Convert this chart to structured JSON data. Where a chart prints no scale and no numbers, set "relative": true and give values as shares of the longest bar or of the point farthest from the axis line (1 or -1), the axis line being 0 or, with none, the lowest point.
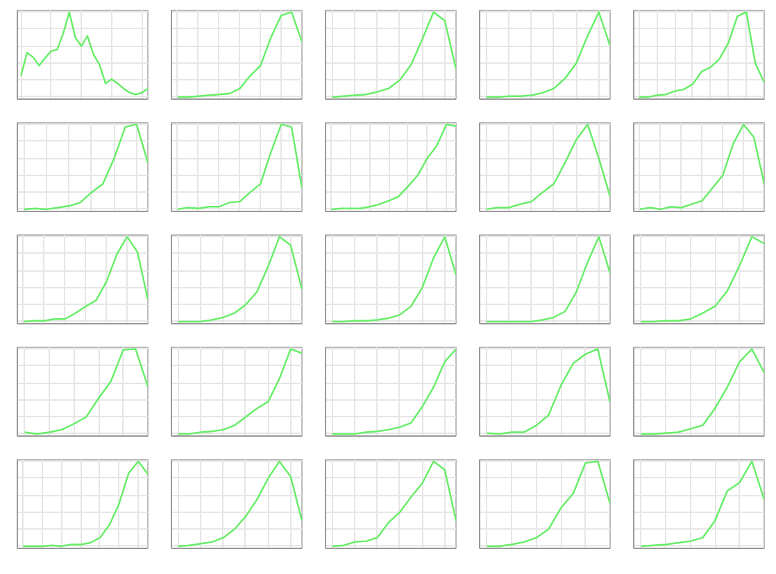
{
  "chart_data": [
    {
      "type": "line",
      "relative": true,
      "grid": true,
      "color": "#66ee66",
      "categories": [
        null,
        null,
        null,
        null,
        null,
        null,
        null,
        null,
        null,
        null,
        null,
        null,
        null,
        null,
        null,
        null,
        null,
        null,
        null,
        null,
        null,
        null
      ],
      "values": [
        0.25,
        0.52,
        0.47,
        0.37,
        0.46,
        0.54,
        0.56,
        0.75,
        1.0,
        0.7,
        0.6,
        0.72,
        0.5,
        0.38,
        0.16,
        0.21,
        0.16,
        0.1,
        0.05,
        0.03,
        0.05,
        0.1
      ]
    },
    {
      "type": "line",
      "relative": true,
      "grid": true,
      "color": "#66ee66",
      "categories": [
        null,
        null,
        null,
        null,
        null,
        null,
        null,
        null,
        null,
        null,
        null,
        null,
        null
      ],
      "values": [
        0,
        0,
        0.01,
        0.02,
        0.03,
        0.04,
        0.1,
        0.25,
        0.37,
        0.7,
        0.96,
        1.0,
        0.65
      ]
    },
    {
      "type": "line",
      "relative": true,
      "grid": true,
      "color": "#66ee66",
      "categories": [
        null,
        null,
        null,
        null,
        null,
        null,
        null,
        null,
        null,
        null,
        null,
        null
      ],
      "values": [
        0,
        0.01,
        0.02,
        0.03,
        0.06,
        0.1,
        0.2,
        0.38,
        0.68,
        1.0,
        0.9,
        0.33
      ]
    },
    {
      "type": "line",
      "relative": true,
      "grid": true,
      "color": "#66ee66",
      "categories": [
        null,
        null,
        null,
        null,
        null,
        null,
        null,
        null,
        null,
        null,
        null,
        null
      ],
      "values": [
        0,
        0,
        0.01,
        0.01,
        0.02,
        0.05,
        0.1,
        0.22,
        0.4,
        0.72,
        1.0,
        0.6
      ]
    },
    {
      "type": "line",
      "relative": true,
      "grid": true,
      "color": "#66ee66",
      "categories": [
        null,
        null,
        null,
        null,
        null,
        null,
        null,
        null,
        null,
        null,
        null,
        null,
        null,
        null,
        null
      ],
      "values": [
        0,
        0,
        0.02,
        0.03,
        0.07,
        0.09,
        0.15,
        0.3,
        0.35,
        0.45,
        0.64,
        0.95,
        1.0,
        0.4,
        0.17
      ]
    },
    {
      "type": "line",
      "relative": true,
      "grid": true,
      "color": "#66ee66",
      "categories": [
        null,
        null,
        null,
        null,
        null,
        null,
        null,
        null,
        null,
        null,
        null,
        null
      ],
      "values": [
        0,
        0.01,
        0,
        0.02,
        0.04,
        0.08,
        0.2,
        0.3,
        0.6,
        0.97,
        1.0,
        0.55
      ]
    },
    {
      "type": "line",
      "relative": true,
      "grid": true,
      "color": "#66ee66",
      "categories": [
        null,
        null,
        null,
        null,
        null,
        null,
        null,
        null,
        null,
        null,
        null,
        null,
        null
      ],
      "values": [
        0,
        0.02,
        0.01,
        0.03,
        0.03,
        0.08,
        0.09,
        0.2,
        0.3,
        0.67,
        1.0,
        0.97,
        0.25
      ]
    },
    {
      "type": "line",
      "relative": true,
      "grid": true,
      "color": "#66ee66",
      "categories": [
        null,
        null,
        null,
        null,
        null,
        null,
        null,
        null,
        null,
        null,
        null,
        null,
        null,
        null
      ],
      "values": [
        0,
        0.01,
        0.01,
        0.01,
        0.03,
        0.06,
        0.1,
        0.15,
        0.27,
        0.4,
        0.6,
        0.75,
        1.0,
        0.98
      ]
    },
    {
      "type": "line",
      "relative": true,
      "grid": true,
      "color": "#66ee66",
      "categories": [
        null,
        null,
        null,
        null,
        null,
        null,
        null,
        null,
        null,
        null,
        null,
        null
      ],
      "values": [
        0,
        0.02,
        0.02,
        0.06,
        0.09,
        0.2,
        0.3,
        0.55,
        0.82,
        1.0,
        0.6,
        0.15
      ]
    },
    {
      "type": "line",
      "relative": true,
      "grid": true,
      "color": "#66ee66",
      "categories": [
        null,
        null,
        null,
        null,
        null,
        null,
        null,
        null,
        null,
        null,
        null,
        null,
        null
      ],
      "values": [
        0,
        0.02,
        0,
        0.03,
        0.02,
        0.06,
        0.1,
        0.25,
        0.4,
        0.77,
        1.0,
        0.85,
        0.3
      ]
    },
    {
      "type": "line",
      "relative": true,
      "grid": true,
      "color": "#66ee66",
      "categories": [
        null,
        null,
        null,
        null,
        null,
        null,
        null,
        null,
        null,
        null,
        null,
        null,
        null
      ],
      "values": [
        0,
        0.01,
        0.01,
        0.03,
        0.03,
        0.1,
        0.18,
        0.25,
        0.47,
        0.79,
        1.0,
        0.82,
        0.26
      ]
    },
    {
      "type": "line",
      "relative": true,
      "grid": true,
      "color": "#66ee66",
      "categories": [
        null,
        null,
        null,
        null,
        null,
        null,
        null,
        null,
        null,
        null,
        null,
        null
      ],
      "values": [
        0,
        0,
        0,
        0.02,
        0.05,
        0.1,
        0.2,
        0.35,
        0.65,
        1.0,
        0.9,
        0.38
      ]
    },
    {
      "type": "line",
      "relative": true,
      "grid": true,
      "color": "#66ee66",
      "categories": [
        null,
        null,
        null,
        null,
        null,
        null,
        null,
        null,
        null,
        null,
        null,
        null
      ],
      "values": [
        0,
        0,
        0.01,
        0.01,
        0.02,
        0.04,
        0.08,
        0.18,
        0.4,
        0.75,
        1.0,
        0.55
      ]
    },
    {
      "type": "line",
      "relative": true,
      "grid": true,
      "color": "#66ee66",
      "categories": [
        null,
        null,
        null,
        null,
        null,
        null,
        null,
        null,
        null,
        null,
        null,
        null
      ],
      "values": [
        0,
        0,
        0,
        0,
        0,
        0.02,
        0.05,
        0.12,
        0.35,
        0.7,
        1.0,
        0.57
      ]
    },
    {
      "type": "line",
      "relative": true,
      "grid": true,
      "color": "#66ee66",
      "categories": [
        null,
        null,
        null,
        null,
        null,
        null,
        null,
        null,
        null,
        null,
        null
      ],
      "values": [
        0,
        0,
        0.01,
        0.01,
        0.03,
        0.1,
        0.18,
        0.36,
        0.66,
        1.0,
        0.92
      ]
    },
    {
      "type": "line",
      "relative": true,
      "grid": true,
      "color": "#66ee66",
      "categories": [
        null,
        null,
        null,
        null,
        null,
        null,
        null,
        null,
        null,
        null,
        null
      ],
      "values": [
        0.02,
        0,
        0.02,
        0.05,
        0.12,
        0.2,
        0.42,
        0.62,
        0.99,
        1.0,
        0.56
      ]
    },
    {
      "type": "line",
      "relative": true,
      "grid": true,
      "color": "#66ee66",
      "categories": [
        null,
        null,
        null,
        null,
        null,
        null,
        null,
        null,
        null,
        null,
        null,
        null
      ],
      "values": [
        0,
        0,
        0.02,
        0.03,
        0.05,
        0.1,
        0.2,
        0.3,
        0.38,
        0.65,
        1.0,
        0.95
      ]
    },
    {
      "type": "line",
      "relative": true,
      "grid": true,
      "color": "#66ee66",
      "categories": [
        null,
        null,
        null,
        null,
        null,
        null,
        null,
        null,
        null,
        null,
        null,
        null
      ],
      "values": [
        0,
        0,
        0,
        0.02,
        0.03,
        0.05,
        0.08,
        0.13,
        0.32,
        0.55,
        0.85,
        1.0
      ]
    },
    {
      "type": "line",
      "relative": true,
      "grid": true,
      "color": "#66ee66",
      "categories": [
        null,
        null,
        null,
        null,
        null,
        null,
        null,
        null,
        null,
        null,
        null
      ],
      "values": [
        0.01,
        0,
        0.02,
        0.02,
        0.1,
        0.22,
        0.57,
        0.83,
        0.94,
        1.0,
        0.37
      ]
    },
    {
      "type": "line",
      "relative": true,
      "grid": true,
      "color": "#66ee66",
      "categories": [
        null,
        null,
        null,
        null,
        null,
        null,
        null,
        null,
        null,
        null,
        null
      ],
      "values": [
        0,
        0,
        0.01,
        0.02,
        0.06,
        0.1,
        0.3,
        0.55,
        0.85,
        1.0,
        0.72
      ]
    },
    {
      "type": "line",
      "relative": true,
      "grid": true,
      "color": "#66ee66",
      "categories": [
        null,
        null,
        null,
        null,
        null,
        null,
        null,
        null,
        null,
        null,
        null,
        null,
        null,
        null
      ],
      "values": [
        0,
        0,
        0,
        0.01,
        0,
        0.02,
        0.02,
        0.04,
        0.1,
        0.25,
        0.5,
        0.86,
        1.0,
        0.85
      ]
    },
    {
      "type": "line",
      "relative": true,
      "grid": true,
      "color": "#66ee66",
      "categories": [
        null,
        null,
        null,
        null,
        null,
        null,
        null,
        null,
        null,
        null,
        null,
        null
      ],
      "values": [
        0,
        0.01,
        0.03,
        0.05,
        0.1,
        0.2,
        0.35,
        0.55,
        0.8,
        1.0,
        0.82,
        0.3
      ]
    },
    {
      "type": "line",
      "relative": true,
      "grid": true,
      "color": "#66ee66",
      "categories": [
        null,
        null,
        null,
        null,
        null,
        null,
        null,
        null,
        null,
        null,
        null,
        null
      ],
      "values": [
        0,
        0.01,
        0.05,
        0.06,
        0.1,
        0.28,
        0.4,
        0.58,
        0.74,
        1.0,
        0.9,
        0.3
      ]
    },
    {
      "type": "line",
      "relative": true,
      "grid": true,
      "color": "#66ee66",
      "categories": [
        null,
        null,
        null,
        null,
        null,
        null,
        null,
        null,
        null,
        null,
        null
      ],
      "values": [
        0,
        0,
        0.02,
        0.05,
        0.1,
        0.2,
        0.45,
        0.62,
        0.98,
        1.0,
        0.5
      ]
    },
    {
      "type": "line",
      "relative": true,
      "grid": true,
      "color": "#66ee66",
      "categories": [
        null,
        null,
        null,
        null,
        null,
        null,
        null,
        null,
        null,
        null,
        null
      ],
      "values": [
        0,
        0.01,
        0.02,
        0.04,
        0.06,
        0.1,
        0.3,
        0.65,
        0.75,
        1.0,
        0.55
      ]
    }
  ]
}
